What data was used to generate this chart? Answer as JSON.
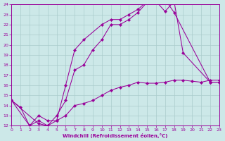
{
  "xlabel": "Windchill (Refroidissement éolien,°C)",
  "bg_color": "#cce8e8",
  "grid_color": "#aacccc",
  "line_color": "#990099",
  "xlim": [
    0,
    23
  ],
  "ylim": [
    12,
    24
  ],
  "xticks": [
    0,
    1,
    2,
    3,
    4,
    5,
    6,
    7,
    8,
    9,
    10,
    11,
    12,
    13,
    14,
    15,
    16,
    17,
    18,
    19,
    20,
    21,
    22,
    23
  ],
  "yticks": [
    12,
    13,
    14,
    15,
    16,
    17,
    18,
    19,
    20,
    21,
    22,
    23,
    24
  ],
  "series": [
    {
      "x": [
        0,
        3,
        4,
        5,
        6,
        7,
        8,
        10,
        11,
        12,
        13,
        14,
        15,
        16,
        17,
        18,
        22,
        23
      ],
      "y": [
        14.5,
        12.2,
        12.0,
        12.5,
        16.0,
        19.5,
        20.5,
        22.0,
        22.5,
        22.5,
        23.0,
        23.5,
        24.3,
        24.5,
        24.5,
        23.2,
        16.3,
        16.3
      ]
    },
    {
      "x": [
        0,
        2,
        3,
        4,
        5,
        6,
        7,
        8,
        9,
        10,
        11,
        12,
        13,
        14,
        15,
        16,
        17,
        18,
        19,
        22,
        23
      ],
      "y": [
        14.5,
        12.0,
        12.5,
        12.0,
        13.0,
        14.5,
        17.5,
        18.0,
        19.5,
        20.5,
        22.0,
        22.0,
        22.5,
        23.2,
        24.2,
        24.3,
        23.3,
        24.3,
        19.2,
        16.3,
        16.3
      ]
    },
    {
      "x": [
        0,
        1,
        2,
        3,
        4,
        5,
        6,
        7,
        8,
        9,
        10,
        11,
        12,
        13,
        14,
        15,
        16,
        17,
        18,
        19,
        20,
        21,
        22,
        23
      ],
      "y": [
        14.5,
        13.8,
        12.0,
        13.0,
        12.5,
        12.5,
        13.0,
        14.0,
        14.2,
        14.5,
        15.0,
        15.5,
        15.8,
        16.0,
        16.3,
        16.2,
        16.2,
        16.3,
        16.5,
        16.5,
        16.4,
        16.3,
        16.5,
        16.5
      ]
    }
  ]
}
